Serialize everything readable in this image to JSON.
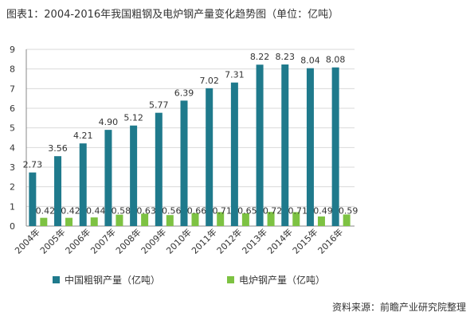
{
  "title": "图表1：2004-2016年我国粗钢及电炉钢产量变化趋势图（单位：亿吨）",
  "source": "资料来源：前瞻产业研究院整理",
  "colors": {
    "crude": "#1f7a8c",
    "electric": "#7dc242",
    "grid": "#d9d9d9",
    "axis": "#888888"
  },
  "chart_data": {
    "type": "bar",
    "title": "图表1：2004-2016年我国粗钢及电炉钢产量变化趋势图（单位：亿吨）",
    "categories": [
      "2004年",
      "2005年",
      "2006年",
      "2007年",
      "2008年",
      "2009年",
      "2010年",
      "2011年",
      "2012年",
      "2013年",
      "2014年",
      "2015年",
      "2016年"
    ],
    "series": [
      {
        "name": "中国粗钢产量（亿吨）",
        "values": [
          2.73,
          3.56,
          4.21,
          4.9,
          5.12,
          5.77,
          6.39,
          7.02,
          7.31,
          8.22,
          8.23,
          8.04,
          8.08
        ],
        "labels": [
          "2.73",
          "3.56",
          "4.21",
          "4.90",
          "5.12",
          "5.77",
          "6.39",
          "7.02",
          "7.31",
          "8.22",
          "8.23",
          "8.04",
          "8.08"
        ]
      },
      {
        "name": "电炉钢产量（亿吨）",
        "values": [
          0.42,
          0.42,
          0.44,
          0.58,
          0.63,
          0.56,
          0.66,
          0.71,
          0.65,
          0.72,
          0.71,
          0.49,
          0.59
        ],
        "labels": [
          "0.42",
          "0.42",
          "0.44",
          "0.58",
          "0.63",
          "0.56",
          "0.66",
          "0.71",
          "0.65",
          "0.72",
          "0.71",
          "0.49",
          "0.59"
        ]
      }
    ],
    "yticks": [
      "0",
      "1",
      "2",
      "3",
      "4",
      "5",
      "6",
      "7",
      "8",
      "9"
    ],
    "ylim": [
      0,
      9
    ],
    "grid": true,
    "legend": "bottom"
  }
}
